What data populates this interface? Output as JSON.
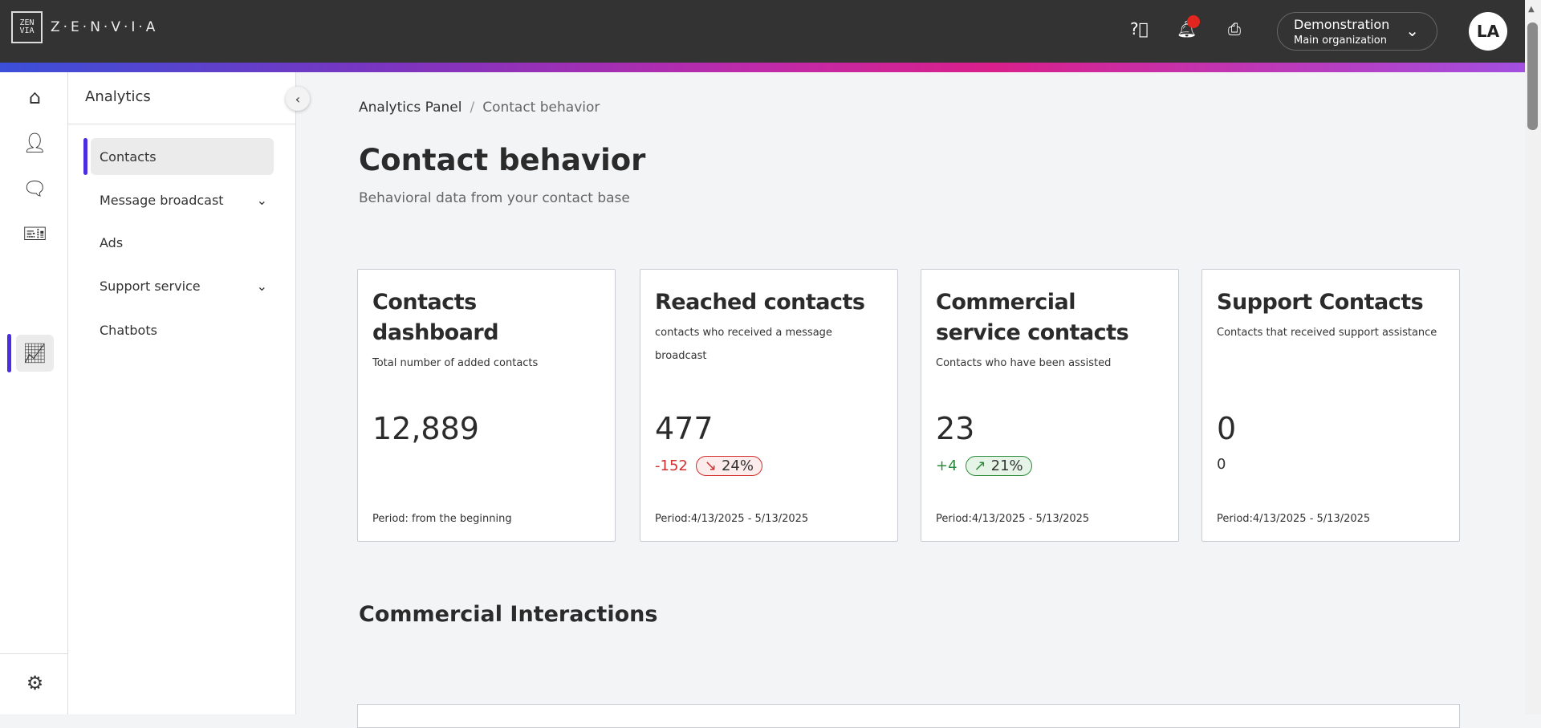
{
  "header": {
    "logo_text": "Z·E·N·V·I·A",
    "logo_mark": "ZEN VIA",
    "org_name": "Demonstration",
    "org_sub": "Main organization",
    "avatar": "LA",
    "icons": [
      "help-icon",
      "bell-icon",
      "printer-icon"
    ]
  },
  "rail": {
    "icons": [
      "home-icon",
      "user-icon",
      "chat-icon",
      "ticket-icon",
      "analytics-icon",
      "gear-icon"
    ]
  },
  "sidebar": {
    "title": "Analytics",
    "items": [
      {
        "label": "Contacts"
      },
      {
        "label": "Message broadcast"
      },
      {
        "label": "Ads"
      },
      {
        "label": "Support service"
      },
      {
        "label": "Chatbots"
      }
    ]
  },
  "breadcrumb": {
    "root": "Analytics Panel",
    "sep": "/",
    "current": "Contact behavior"
  },
  "page": {
    "title": "Contact behavior",
    "subtitle": "Behavioral data from your contact base"
  },
  "cards": [
    {
      "title": "Contacts dashboard",
      "desc": "Total number of added contacts",
      "value": "12,889",
      "period": "Period: from the beginning"
    },
    {
      "title": "Reached contacts",
      "desc": "contacts who received a message broadcast",
      "value": "477",
      "delta": "-152",
      "pct": "24%",
      "arrow": "↘",
      "period": "Period:4/13/2025 - 5/13/2025"
    },
    {
      "title": "Commercial service contacts",
      "desc": "Contacts who have been assisted",
      "value": "23",
      "delta": "+4",
      "pct": "21%",
      "arrow": "↗",
      "period": "Period:4/13/2025 - 5/13/2025"
    },
    {
      "title": "Support Contacts",
      "desc": "Contacts that received support assistance",
      "value": "0",
      "delta": "0",
      "period": "Period:4/13/2025 - 5/13/2025"
    }
  ],
  "section": {
    "title": "Commercial Interactions"
  },
  "colors": {
    "accent": "#4a2de0",
    "negative": "#d32f2f",
    "positive": "#2e8b3c",
    "header": "#333333"
  }
}
